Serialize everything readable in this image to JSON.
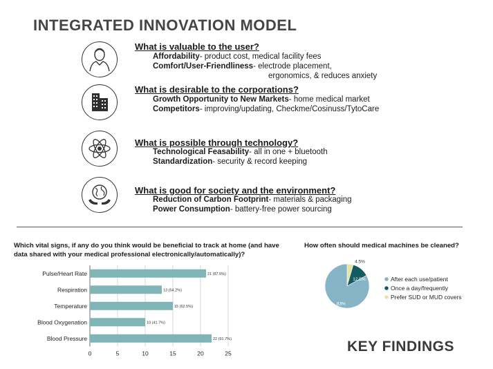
{
  "title": "INTEGRATED INNOVATION MODEL",
  "sections": [
    {
      "icon": "user-icon",
      "question": "What is valuable to the user?",
      "items": [
        {
          "term": "Affordability",
          "text": "- product cost, medical facility fees"
        },
        {
          "term": "Comfort/User-Friendliness",
          "text": "- electrode placement,"
        }
      ],
      "continuation": "ergonomics, & reduces anxiety"
    },
    {
      "icon": "buildings-icon",
      "question": "What is desirable to the corporations?",
      "items": [
        {
          "term": "Growth Opportunity to New Markets",
          "text": "- home medical market"
        },
        {
          "term": "Competitors",
          "text": "- improving/updating, Checkme/Cosinuss/TytoCare"
        }
      ]
    },
    {
      "icon": "atom-icon",
      "question": "What is possible through technology?",
      "items": [
        {
          "term": "Technological Feasability",
          "text": "- all in one + bluetooth"
        },
        {
          "term": "Standardization",
          "text": "- security & record keeping"
        }
      ]
    },
    {
      "icon": "globe-hands-icon",
      "question": "What is good for society and the environment?",
      "items": [
        {
          "term": "Reduction of Carbon Footprint",
          "text": "- materials & packaging"
        },
        {
          "term": "Power Consumption",
          "text": "- battery-free power sourcing"
        }
      ]
    }
  ],
  "chart_data": [
    {
      "type": "bar",
      "orientation": "horizontal",
      "title": "Which vital signs, if any do you think would be beneficial to track at home (and have data shared with your medical professional electronically/automatically)?",
      "categories": [
        "Pulse/Heart Rate",
        "Respiration",
        "Temperature",
        "Blood Oxygenation",
        "Blood Pressure"
      ],
      "values": [
        21,
        13,
        15,
        10,
        22
      ],
      "data_labels": [
        "21 (87.5%)",
        "13 (54.2%)",
        "15 (62.5%)",
        "10 (41.7%)",
        "22 (91.7%)"
      ],
      "xlim": [
        0,
        25
      ],
      "xticks": [
        "0",
        "5",
        "10",
        "15",
        "20",
        "25"
      ],
      "grid": true,
      "color": "#80b5b8"
    },
    {
      "type": "pie",
      "title": "How often should medical machines be cleaned?",
      "labels": [
        "After each use/patient",
        "Once a day/frequently",
        "Prefer SUD or MUD covers"
      ],
      "values": [
        83,
        12.5,
        4.5
      ],
      "data_labels": [
        "83%",
        "12.5%",
        "4.5%"
      ],
      "colors": [
        "#85b4c7",
        "#145a60",
        "#e6e5a0"
      ],
      "legend": "right"
    }
  ],
  "footer": "KEY FINDINGS"
}
